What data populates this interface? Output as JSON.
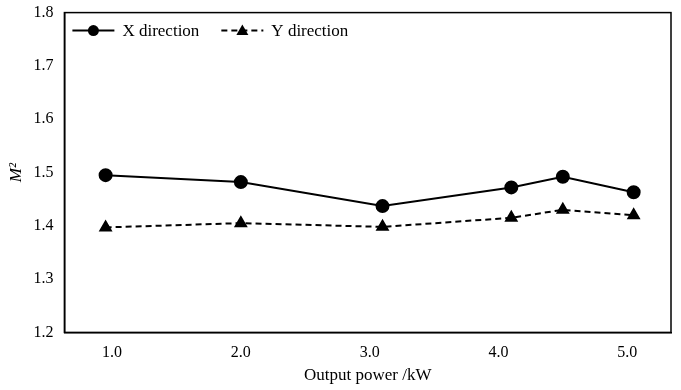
{
  "chart_data": {
    "type": "line",
    "x_label": "Output power /kW",
    "y_label": "M²",
    "x": [
      0.95,
      2.0,
      3.1,
      4.1,
      4.5,
      5.05
    ],
    "series": [
      {
        "name": "X direction",
        "color": "#000000",
        "marker": "circle",
        "line_style": "solid",
        "values": [
          1.495,
          1.482,
          1.437,
          1.472,
          1.492,
          1.463
        ]
      },
      {
        "name": "Y direction",
        "color": "#000000",
        "marker": "triangle",
        "line_style": "dashed",
        "values": [
          1.397,
          1.405,
          1.398,
          1.415,
          1.43,
          1.42
        ]
      }
    ],
    "xlim": [
      0.63,
      5.34
    ],
    "xticks": [
      {
        "value": 1,
        "label": "1.0"
      },
      {
        "value": 2,
        "label": "2.0"
      },
      {
        "value": 3,
        "label": "3.0"
      },
      {
        "value": 4,
        "label": "4.0"
      },
      {
        "value": 5,
        "label": "5.0"
      }
    ],
    "ylim": [
      1.2,
      1.8
    ],
    "yticks": [
      1.2,
      1.3,
      1.4,
      1.5,
      1.6,
      1.7,
      1.8
    ],
    "grid": false,
    "legend": "upper left"
  }
}
